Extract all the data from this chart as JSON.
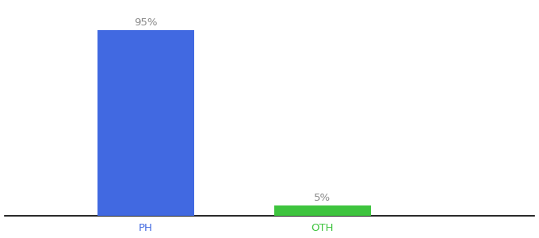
{
  "categories": [
    "PH",
    "OTH"
  ],
  "values": [
    95,
    5
  ],
  "bar_colors": [
    "#4169e1",
    "#3ec43e"
  ],
  "label_texts": [
    "95%",
    "5%"
  ],
  "label_color": "#888888",
  "tick_colors": [
    "#4169e1",
    "#3ec43e"
  ],
  "ylim": [
    0,
    108
  ],
  "background_color": "#ffffff",
  "label_fontsize": 9.5,
  "axis_label_fontsize": 9.5,
  "bar_width": 0.55,
  "x_positions": [
    1,
    2
  ],
  "xlim": [
    0.2,
    3.2
  ]
}
